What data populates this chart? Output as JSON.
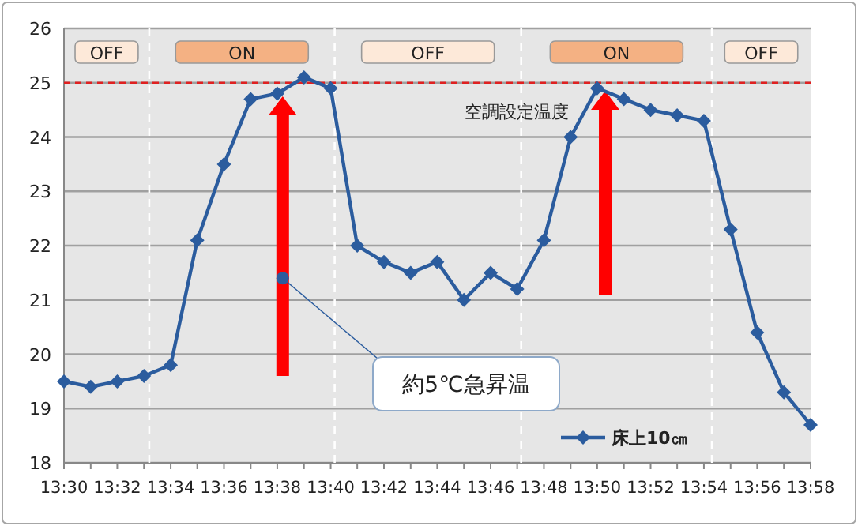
{
  "chart_data": {
    "type": "line",
    "xlim": [
      13.5,
      13.9667
    ],
    "ylim": [
      18,
      26
    ],
    "x": [
      13.5,
      13.5167,
      13.5333,
      13.55,
      13.5667,
      13.5833,
      13.6,
      13.6167,
      13.6333,
      13.65,
      13.6667,
      13.6833,
      13.7,
      13.7167,
      13.7333,
      13.75,
      13.7667,
      13.7833,
      13.8,
      13.8167,
      13.8333,
      13.85,
      13.8667,
      13.8833,
      13.9,
      13.9167,
      13.9333,
      13.95,
      13.9667
    ],
    "series": [
      {
        "name": "床上10㎝",
        "color": "#2b5c9e",
        "values": [
          19.5,
          19.4,
          19.5,
          19.6,
          19.8,
          22.1,
          23.5,
          24.7,
          24.8,
          25.1,
          24.9,
          22.0,
          21.7,
          21.5,
          21.7,
          21.0,
          21.5,
          21.2,
          22.1,
          24.0,
          24.9,
          24.7,
          24.5,
          24.4,
          24.3,
          22.3,
          20.4,
          19.3,
          18.7
        ]
      }
    ],
    "xticks": [
      {
        "value": 13.5,
        "label": "13:30"
      },
      {
        "value": 13.5167,
        "label": null
      },
      {
        "value": 13.5333,
        "label": "13:32"
      },
      {
        "value": 13.55,
        "label": null
      },
      {
        "value": 13.5667,
        "label": "13:34"
      },
      {
        "value": 13.5833,
        "label": null
      },
      {
        "value": 13.6,
        "label": "13:36"
      },
      {
        "value": 13.6167,
        "label": null
      },
      {
        "value": 13.6333,
        "label": "13:38"
      },
      {
        "value": 13.65,
        "label": null
      },
      {
        "value": 13.6667,
        "label": "13:40"
      },
      {
        "value": 13.6833,
        "label": null
      },
      {
        "value": 13.7,
        "label": "13:42"
      },
      {
        "value": 13.7167,
        "label": null
      },
      {
        "value": 13.7333,
        "label": "13:44"
      },
      {
        "value": 13.75,
        "label": null
      },
      {
        "value": 13.7667,
        "label": "13:46"
      },
      {
        "value": 13.7833,
        "label": null
      },
      {
        "value": 13.8,
        "label": "13:48"
      },
      {
        "value": 13.8167,
        "label": null
      },
      {
        "value": 13.8333,
        "label": "13:50"
      },
      {
        "value": 13.85,
        "label": null
      },
      {
        "value": 13.8667,
        "label": "13:52"
      },
      {
        "value": 13.8833,
        "label": null
      },
      {
        "value": 13.9,
        "label": "13:54"
      },
      {
        "value": 13.9167,
        "label": null
      },
      {
        "value": 13.9333,
        "label": "13:56"
      },
      {
        "value": 13.95,
        "label": null
      },
      {
        "value": 13.9667,
        "label": "13:58"
      }
    ],
    "yticks": [
      18,
      19,
      20,
      21,
      22,
      23,
      24,
      25,
      26
    ],
    "grid": "y",
    "marker": "diamond",
    "legend": "bottom right",
    "ref_lines": [
      {
        "axis": "y",
        "value": 25,
        "label": "空調設定温度",
        "color": "#e02020",
        "line_style": "dashed"
      },
      {
        "axis": "x",
        "value": 13.5533,
        "color": "#ffffff",
        "line_style": "dashed"
      },
      {
        "axis": "x",
        "value": 13.6692,
        "color": "#ffffff",
        "line_style": "dashed"
      },
      {
        "axis": "x",
        "value": 13.7858,
        "color": "#ffffff",
        "line_style": "dashed"
      },
      {
        "axis": "x",
        "value": 13.905,
        "color": "#ffffff",
        "line_style": "dashed"
      }
    ],
    "annotations": [
      "OFF",
      "ON",
      "OFF",
      "ON",
      "OFF",
      {
        "text": "約5℃急昇温",
        "x": 13.6367,
        "y": 21.4
      }
    ]
  }
}
